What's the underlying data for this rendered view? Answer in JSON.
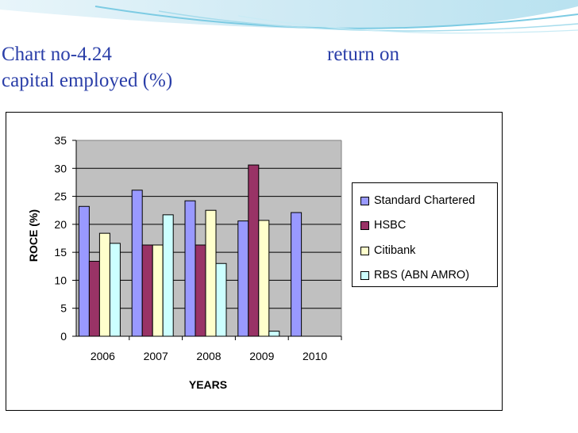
{
  "slide": {
    "title_left": "Chart no-4.24",
    "title_right": "return on",
    "title_line2": "capital employed (%)"
  },
  "colors": {
    "title": "#2a3ea8",
    "plot_bg": "#c0c0c0",
    "banner_light": "#d6edf6",
    "banner_mid": "#8fd0e6"
  },
  "chart_data": {
    "type": "bar",
    "title": "",
    "xlabel": "YEARS",
    "ylabel": "ROCE (%)",
    "ylim": [
      0,
      35
    ],
    "yticks": [
      0,
      5,
      10,
      15,
      20,
      25,
      30,
      35
    ],
    "categories": [
      "2006",
      "2007",
      "2008",
      "2009",
      "2010"
    ],
    "grid": true,
    "legend_position": "right",
    "series": [
      {
        "name": "Standard Chartered",
        "color": "#9999ff",
        "values": [
          23.2,
          26.1,
          24.2,
          20.6,
          22.1
        ]
      },
      {
        "name": "HSBC",
        "color": "#993366",
        "values": [
          13.4,
          16.3,
          16.3,
          30.6,
          null
        ]
      },
      {
        "name": "Citibank",
        "color": "#ffffcc",
        "values": [
          18.4,
          16.3,
          22.5,
          20.7,
          null
        ]
      },
      {
        "name": "RBS (ABN AMRO)",
        "color": "#ccffff",
        "values": [
          16.6,
          21.7,
          13.0,
          0.9,
          null
        ]
      }
    ]
  }
}
